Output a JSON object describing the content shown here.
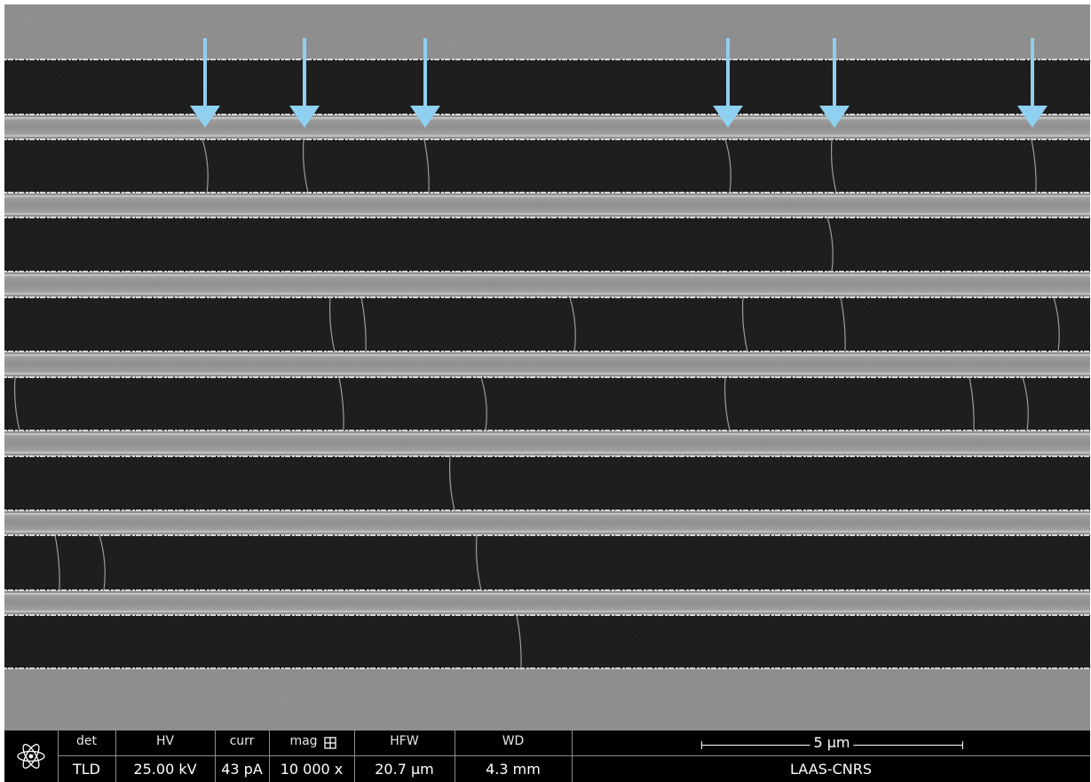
{
  "image": {
    "subject": "parallel-trench-grating-with-bridging-nanofibers",
    "arrow_color": "#8FD0F0",
    "arrow_count": 6
  },
  "databar": {
    "logo_icon": "atom-icon",
    "fields": [
      {
        "label": "det",
        "value": "TLD"
      },
      {
        "label": "HV",
        "value": "25.00 kV"
      },
      {
        "label": "curr",
        "value": "43 pA"
      },
      {
        "label": "mag",
        "value": "10 000 x"
      },
      {
        "label": "HFW",
        "value": "20.7 µm"
      },
      {
        "label": "WD",
        "value": "4.3 mm"
      }
    ],
    "mag_icon": "grid-icon",
    "scale_bar": "5 µm",
    "lab": "LAAS-CNRS"
  }
}
